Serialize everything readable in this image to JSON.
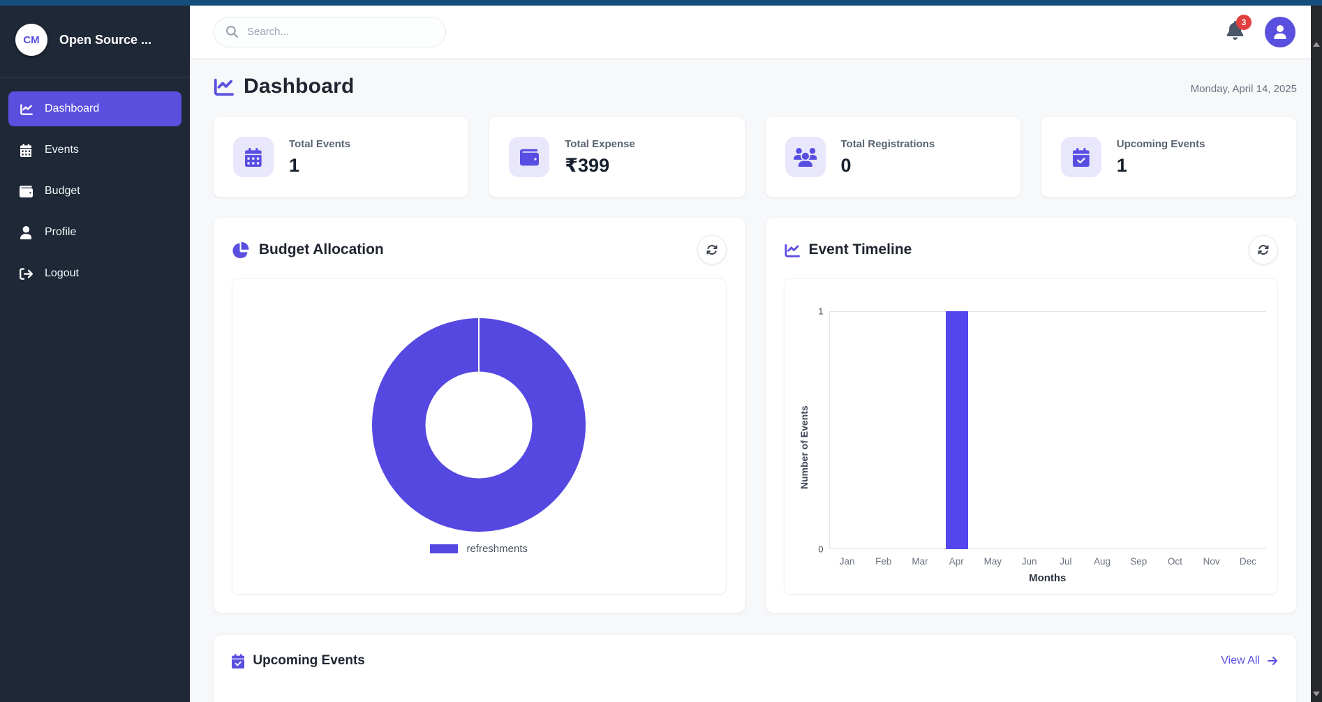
{
  "colors": {
    "accent": "#5b4fe0",
    "badge": "#e33e3e",
    "donut": "#5548e0",
    "bar": "#5246ec"
  },
  "sidebar": {
    "logo_text": "CM",
    "app_name": "Open Source ...",
    "items": [
      {
        "label": "Dashboard",
        "icon": "chart-line-icon",
        "active": true
      },
      {
        "label": "Events",
        "icon": "calendar-icon",
        "active": false
      },
      {
        "label": "Budget",
        "icon": "wallet-icon",
        "active": false
      },
      {
        "label": "Profile",
        "icon": "user-icon",
        "active": false
      },
      {
        "label": "Logout",
        "icon": "logout-icon",
        "active": false
      }
    ]
  },
  "topbar": {
    "search_placeholder": "Search...",
    "notification_count": "3"
  },
  "page": {
    "title": "Dashboard",
    "date": "Monday, April 14, 2025"
  },
  "stats": [
    {
      "label": "Total Events",
      "value": "1",
      "icon": "calendar-icon"
    },
    {
      "label": "Total Expense",
      "value": "₹399",
      "icon": "wallet-icon"
    },
    {
      "label": "Total Registrations",
      "value": "0",
      "icon": "users-icon"
    },
    {
      "label": "Upcoming Events",
      "value": "1",
      "icon": "calendar-check-icon"
    }
  ],
  "cards": {
    "budget": {
      "title": "Budget Allocation"
    },
    "timeline": {
      "title": "Event Timeline"
    },
    "upcoming": {
      "title": "Upcoming Events",
      "view_all": "View All"
    }
  },
  "chart_data": [
    {
      "type": "pie",
      "donut": true,
      "title": "Budget Allocation",
      "labels": [
        "refreshments"
      ],
      "values": [
        100
      ],
      "unit": "%",
      "colors": [
        "#5548e0"
      ],
      "legend_position": "bottom"
    },
    {
      "type": "bar",
      "title": "Event Timeline",
      "categories": [
        "Jan",
        "Feb",
        "Mar",
        "Apr",
        "May",
        "Jun",
        "Jul",
        "Aug",
        "Sep",
        "Oct",
        "Nov",
        "Dec"
      ],
      "values": [
        0,
        0,
        0,
        1,
        0,
        0,
        0,
        0,
        0,
        0,
        0,
        0
      ],
      "xlabel": "Months",
      "ylabel": "Number of Events",
      "ylim": [
        0,
        1
      ],
      "yticks": [
        0,
        1
      ],
      "bar_color": "#5246ec",
      "grid": "top-line-only",
      "legend": false
    }
  ]
}
